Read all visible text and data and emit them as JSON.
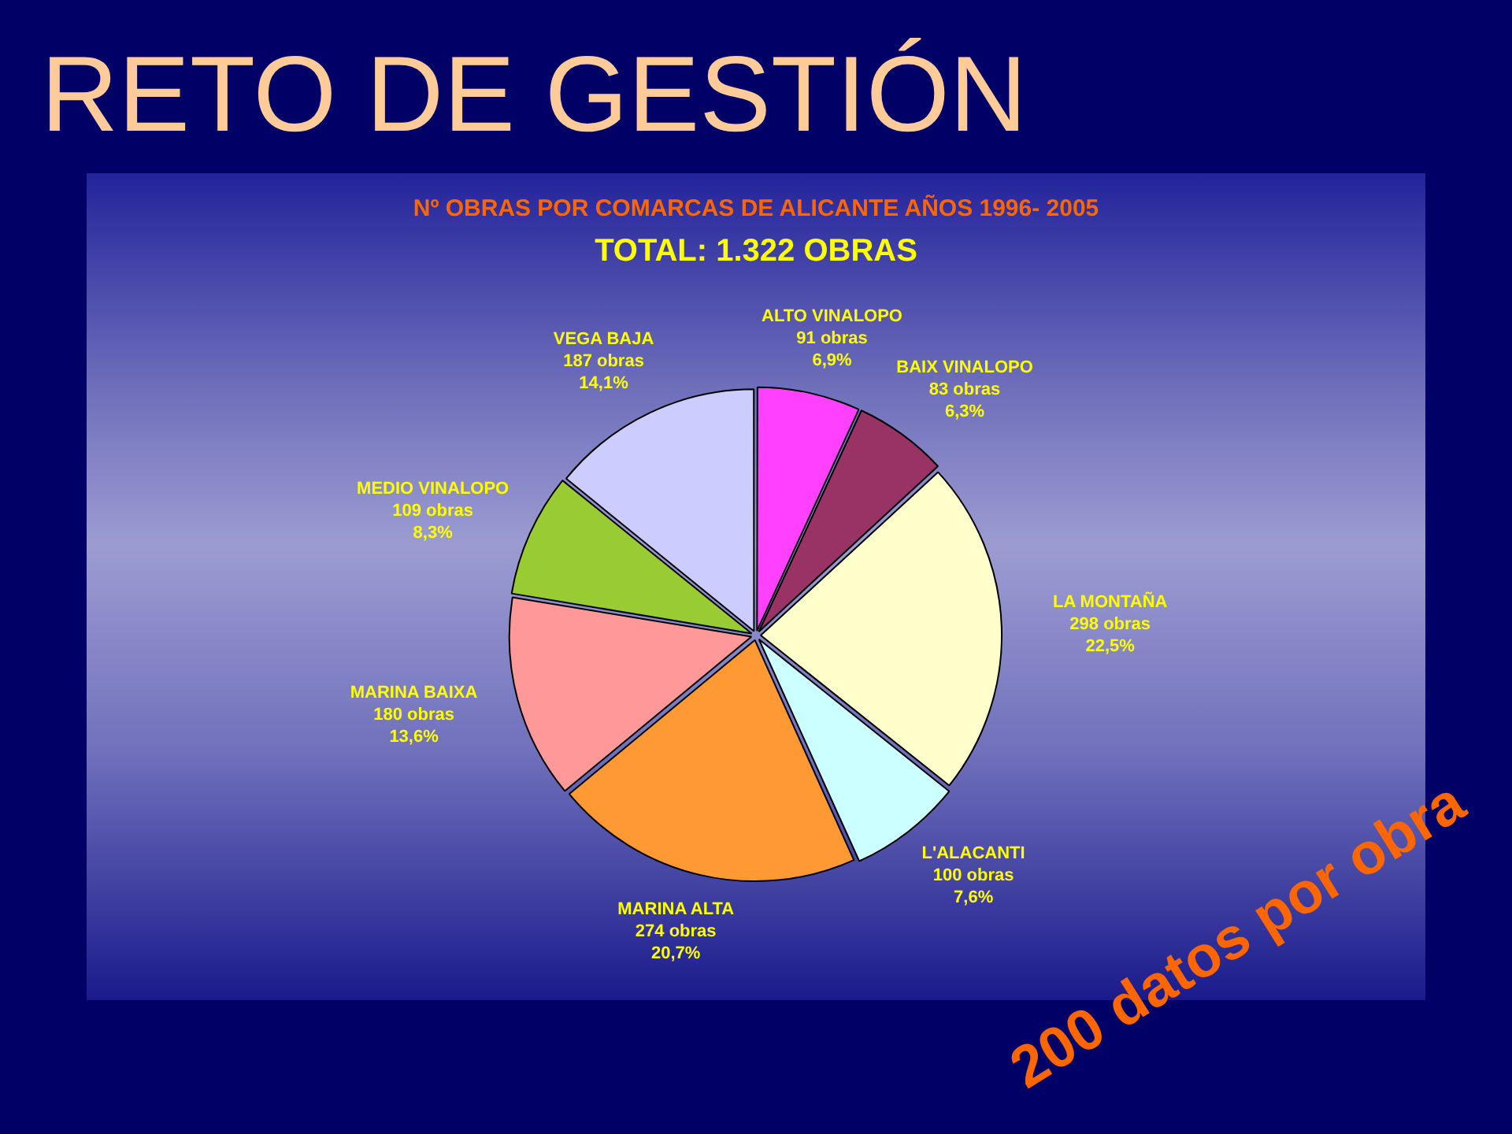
{
  "chart_data": {
    "type": "pie",
    "title": "Nº OBRAS POR COMARCAS DE ALICANTE AÑOS 1996- 2005",
    "subtitle": "TOTAL: 1.322 OBRAS",
    "categories": [
      "ALTO VINALOPO",
      "BAIX VINALOPO",
      "LA MONTAÑA",
      "L'ALACANTI",
      "MARINA ALTA",
      "MARINA BAIXA",
      "MEDIO VINALOPO",
      "VEGA BAJA"
    ],
    "values": [
      91,
      83,
      298,
      100,
      274,
      180,
      109,
      187
    ],
    "value_labels": [
      "91 obras\n6,9%",
      "83 obras\n6,3%",
      "298 obras\n22,5%",
      "100 obras\n7,6%",
      "274 obras\n20,7%",
      "180 obras\n13,6%",
      "109 obras\n8,3%",
      "187 obras\n14,1%"
    ],
    "colors": [
      "#ff40ff",
      "#993366",
      "#ffffcc",
      "#ccffff",
      "#ff9933",
      "#ff9999",
      "#99cc33",
      "#ccccff"
    ],
    "annotations": [
      "RETO DE GESTIÓN",
      "200 datos por obra"
    ]
  }
}
